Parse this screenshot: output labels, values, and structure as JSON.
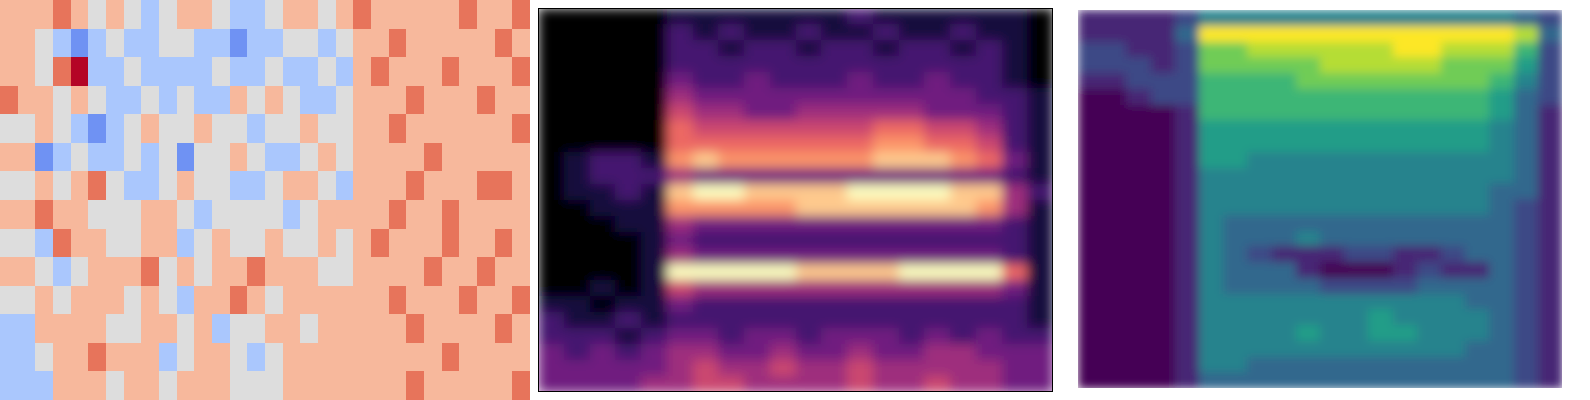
{
  "chart_data": [
    {
      "type": "heatmap",
      "color": "coolwarm",
      "tick_labels": false,
      "color_range": [
        -3,
        3
      ],
      "cells": [
        [
          1,
          1,
          1,
          2,
          1,
          0,
          1,
          0,
          -1,
          0,
          1,
          1,
          0,
          -1,
          -1,
          0,
          1,
          1,
          0,
          1,
          2,
          1,
          1,
          1,
          1,
          1,
          2,
          1,
          1,
          2
        ],
        [
          1,
          1,
          0,
          -1,
          -2,
          -1,
          0,
          -1,
          -1,
          0,
          0,
          -1,
          -1,
          -2,
          -1,
          -1,
          0,
          0,
          -1,
          0,
          1,
          1,
          2,
          1,
          1,
          1,
          1,
          1,
          2,
          1
        ],
        [
          1,
          1,
          0,
          2,
          3,
          -1,
          -1,
          0,
          -1,
          -1,
          -1,
          -1,
          0,
          -1,
          -1,
          0,
          -1,
          -1,
          0,
          -1,
          1,
          2,
          1,
          1,
          1,
          2,
          1,
          1,
          1,
          2
        ],
        [
          2,
          1,
          1,
          0,
          1,
          0,
          -1,
          -1,
          0,
          -1,
          0,
          -1,
          -1,
          1,
          0,
          1,
          0,
          -1,
          -1,
          0,
          1,
          1,
          1,
          2,
          1,
          1,
          1,
          2,
          1,
          1
        ],
        [
          0,
          0,
          1,
          0,
          -1,
          -2,
          -1,
          0,
          1,
          0,
          0,
          1,
          0,
          0,
          -1,
          0,
          0,
          1,
          0,
          0,
          1,
          1,
          2,
          1,
          1,
          1,
          1,
          1,
          1,
          2
        ],
        [
          1,
          1,
          -2,
          -1,
          0,
          -1,
          -1,
          0,
          -1,
          0,
          -2,
          0,
          0,
          1,
          0,
          -1,
          -1,
          0,
          1,
          0,
          1,
          1,
          1,
          1,
          2,
          1,
          1,
          1,
          1,
          1
        ],
        [
          0,
          0,
          1,
          0,
          1,
          2,
          0,
          -1,
          -1,
          0,
          1,
          0,
          0,
          -1,
          -1,
          0,
          1,
          1,
          0,
          -1,
          1,
          1,
          1,
          2,
          1,
          1,
          1,
          2,
          2,
          1
        ],
        [
          1,
          1,
          2,
          1,
          1,
          0,
          0,
          0,
          1,
          1,
          0,
          -1,
          0,
          0,
          0,
          0,
          -1,
          0,
          1,
          1,
          1,
          1,
          2,
          1,
          1,
          2,
          1,
          1,
          1,
          1
        ],
        [
          0,
          0,
          -1,
          2,
          1,
          1,
          0,
          0,
          1,
          1,
          -1,
          0,
          1,
          0,
          0,
          1,
          0,
          0,
          1,
          0,
          1,
          2,
          1,
          1,
          1,
          2,
          1,
          1,
          2,
          1
        ],
        [
          1,
          1,
          0,
          -1,
          0,
          1,
          1,
          1,
          2,
          0,
          1,
          0,
          1,
          1,
          2,
          1,
          1,
          1,
          0,
          0,
          1,
          1,
          1,
          1,
          2,
          1,
          1,
          2,
          1,
          1
        ],
        [
          0,
          0,
          1,
          0,
          1,
          1,
          1,
          0,
          1,
          0,
          -1,
          1,
          1,
          2,
          1,
          0,
          1,
          1,
          1,
          1,
          1,
          1,
          2,
          1,
          1,
          1,
          2,
          1,
          1,
          2
        ],
        [
          -1,
          -1,
          1,
          1,
          1,
          1,
          0,
          0,
          1,
          1,
          0,
          1,
          -1,
          0,
          0,
          1,
          1,
          0,
          1,
          1,
          1,
          1,
          1,
          2,
          1,
          1,
          1,
          1,
          2,
          1
        ],
        [
          -1,
          -1,
          0,
          1,
          1,
          2,
          1,
          1,
          1,
          -1,
          0,
          1,
          1,
          0,
          -1,
          0,
          1,
          1,
          1,
          1,
          1,
          1,
          1,
          1,
          1,
          2,
          1,
          1,
          1,
          1
        ],
        [
          -1,
          -1,
          -1,
          1,
          1,
          1,
          0,
          1,
          1,
          0,
          1,
          1,
          1,
          0,
          0,
          0,
          1,
          1,
          1,
          1,
          1,
          1,
          1,
          2,
          1,
          1,
          1,
          1,
          1,
          2
        ]
      ]
    },
    {
      "type": "heatmap",
      "color": "magma",
      "tick_labels": false,
      "color_range": [
        0,
        9
      ],
      "cells": [
        [
          0,
          0,
          0,
          0,
          0,
          1,
          1,
          1,
          1,
          1,
          1,
          1,
          2,
          1,
          1,
          1,
          1,
          1,
          1,
          0
        ],
        [
          0,
          0,
          0,
          0,
          0,
          2,
          1,
          2,
          1,
          1,
          2,
          1,
          1,
          2,
          1,
          1,
          2,
          1,
          1,
          0
        ],
        [
          0,
          0,
          0,
          0,
          0,
          2,
          2,
          1,
          2,
          2,
          1,
          2,
          2,
          1,
          2,
          2,
          1,
          2,
          1,
          0
        ],
        [
          0,
          0,
          0,
          0,
          0,
          2,
          2,
          2,
          2,
          2,
          2,
          2,
          2,
          2,
          2,
          2,
          2,
          2,
          1,
          0
        ],
        [
          0,
          0,
          0,
          0,
          0,
          3,
          2,
          2,
          3,
          2,
          2,
          2,
          3,
          2,
          2,
          3,
          2,
          2,
          1,
          0
        ],
        [
          0,
          0,
          0,
          0,
          0,
          4,
          3,
          3,
          3,
          3,
          3,
          3,
          3,
          3,
          3,
          3,
          3,
          2,
          2,
          1
        ],
        [
          0,
          0,
          0,
          0,
          0,
          5,
          4,
          4,
          3,
          3,
          4,
          4,
          4,
          4,
          4,
          3,
          3,
          3,
          2,
          1
        ],
        [
          0,
          0,
          0,
          0,
          0,
          6,
          5,
          5,
          5,
          5,
          5,
          5,
          5,
          6,
          6,
          5,
          5,
          4,
          2,
          1
        ],
        [
          0,
          0,
          0,
          0,
          0,
          6,
          6,
          6,
          6,
          6,
          6,
          6,
          6,
          7,
          7,
          6,
          6,
          5,
          2,
          1
        ],
        [
          0,
          1,
          2,
          2,
          1,
          7,
          8,
          7,
          7,
          7,
          7,
          7,
          7,
          8,
          8,
          8,
          7,
          6,
          3,
          1
        ],
        [
          0,
          1,
          2,
          2,
          2,
          4,
          3,
          3,
          3,
          3,
          3,
          3,
          3,
          3,
          3,
          3,
          3,
          3,
          2,
          1
        ],
        [
          0,
          1,
          1,
          2,
          1,
          8,
          9,
          9,
          8,
          8,
          8,
          8,
          9,
          9,
          9,
          9,
          8,
          8,
          4,
          2
        ],
        [
          0,
          0,
          1,
          1,
          1,
          7,
          7,
          7,
          7,
          7,
          8,
          8,
          8,
          8,
          8,
          8,
          8,
          7,
          4,
          1
        ],
        [
          0,
          0,
          0,
          1,
          1,
          4,
          3,
          3,
          3,
          3,
          3,
          3,
          3,
          3,
          3,
          3,
          3,
          3,
          2,
          1
        ],
        [
          0,
          0,
          0,
          0,
          1,
          3,
          2,
          2,
          2,
          2,
          2,
          2,
          2,
          2,
          2,
          2,
          2,
          2,
          2,
          1
        ],
        [
          0,
          0,
          0,
          0,
          1,
          4,
          3,
          3,
          3,
          3,
          3,
          3,
          3,
          3,
          3,
          3,
          3,
          3,
          2,
          1
        ],
        [
          0,
          0,
          0,
          0,
          1,
          9,
          9,
          9,
          9,
          9,
          8,
          8,
          8,
          8,
          9,
          9,
          9,
          9,
          6,
          1
        ],
        [
          0,
          0,
          1,
          0,
          1,
          5,
          4,
          4,
          4,
          4,
          4,
          4,
          4,
          4,
          4,
          4,
          4,
          4,
          3,
          1
        ],
        [
          1,
          1,
          0,
          1,
          1,
          3,
          2,
          2,
          2,
          2,
          2,
          2,
          2,
          2,
          2,
          2,
          2,
          2,
          2,
          1
        ],
        [
          2,
          1,
          1,
          2,
          1,
          2,
          2,
          2,
          2,
          2,
          2,
          2,
          2,
          2,
          2,
          2,
          2,
          2,
          2,
          1
        ],
        [
          2,
          2,
          2,
          1,
          2,
          3,
          3,
          2,
          3,
          3,
          2,
          3,
          3,
          3,
          2,
          3,
          2,
          3,
          2,
          2
        ],
        [
          3,
          2,
          3,
          2,
          3,
          4,
          4,
          3,
          3,
          4,
          3,
          3,
          4,
          3,
          3,
          4,
          4,
          3,
          3,
          3
        ],
        [
          3,
          3,
          3,
          3,
          3,
          4,
          5,
          4,
          4,
          5,
          4,
          4,
          5,
          4,
          4,
          4,
          4,
          4,
          3,
          3
        ],
        [
          3,
          3,
          3,
          3,
          4,
          4,
          5,
          5,
          4,
          4,
          4,
          4,
          5,
          4,
          4,
          5,
          4,
          4,
          3,
          3
        ]
      ]
    },
    {
      "type": "heatmap",
      "color": "viridis",
      "tick_labels": false,
      "color_range": [
        0,
        9
      ],
      "cells": [
        [
          1,
          1,
          1,
          1,
          2,
          4,
          4,
          4,
          4,
          4,
          4,
          4,
          4,
          4,
          4,
          4,
          4,
          4,
          3,
          2
        ],
        [
          1,
          1,
          1,
          1,
          3,
          9,
          9,
          9,
          9,
          9,
          9,
          9,
          9,
          9,
          9,
          9,
          9,
          9,
          8,
          3
        ],
        [
          2,
          2,
          1,
          1,
          2,
          7,
          7,
          8,
          8,
          8,
          8,
          8,
          8,
          9,
          9,
          8,
          8,
          8,
          6,
          2
        ],
        [
          2,
          2,
          2,
          1,
          2,
          7,
          7,
          7,
          7,
          7,
          8,
          8,
          8,
          8,
          8,
          7,
          7,
          7,
          5,
          2
        ],
        [
          1,
          1,
          2,
          2,
          2,
          6,
          6,
          6,
          6,
          7,
          7,
          7,
          7,
          7,
          7,
          7,
          7,
          6,
          4,
          2
        ],
        [
          0,
          0,
          1,
          2,
          2,
          6,
          6,
          6,
          6,
          6,
          6,
          6,
          6,
          6,
          6,
          6,
          6,
          5,
          3,
          2
        ],
        [
          0,
          0,
          0,
          0,
          1,
          6,
          6,
          6,
          6,
          6,
          6,
          6,
          6,
          6,
          6,
          6,
          6,
          5,
          3,
          1
        ],
        [
          0,
          0,
          0,
          0,
          1,
          5,
          5,
          5,
          5,
          5,
          5,
          5,
          5,
          5,
          5,
          5,
          5,
          4,
          3,
          1
        ],
        [
          0,
          0,
          0,
          0,
          1,
          5,
          5,
          5,
          5,
          5,
          5,
          5,
          5,
          5,
          5,
          5,
          5,
          4,
          3,
          1
        ],
        [
          0,
          0,
          0,
          0,
          1,
          5,
          5,
          4,
          4,
          4,
          4,
          4,
          4,
          4,
          4,
          4,
          4,
          4,
          3,
          1
        ],
        [
          0,
          0,
          0,
          0,
          1,
          4,
          4,
          4,
          4,
          4,
          4,
          4,
          4,
          4,
          4,
          4,
          4,
          4,
          3,
          1
        ],
        [
          0,
          0,
          0,
          0,
          1,
          4,
          4,
          4,
          4,
          4,
          4,
          4,
          4,
          4,
          4,
          4,
          4,
          3,
          3,
          1
        ],
        [
          0,
          0,
          0,
          0,
          1,
          4,
          4,
          4,
          4,
          4,
          4,
          4,
          4,
          4,
          4,
          4,
          4,
          3,
          2,
          1
        ],
        [
          0,
          0,
          0,
          0,
          1,
          4,
          3,
          3,
          3,
          3,
          3,
          3,
          3,
          3,
          3,
          3,
          3,
          3,
          2,
          1
        ],
        [
          0,
          0,
          0,
          0,
          1,
          4,
          3,
          3,
          3,
          4,
          3,
          3,
          3,
          3,
          3,
          3,
          3,
          3,
          2,
          1
        ],
        [
          0,
          0,
          0,
          0,
          1,
          4,
          3,
          2,
          1,
          1,
          1,
          2,
          2,
          1,
          1,
          2,
          3,
          3,
          2,
          1
        ],
        [
          0,
          0,
          0,
          0,
          1,
          4,
          3,
          3,
          3,
          1,
          0,
          0,
          0,
          1,
          2,
          1,
          1,
          3,
          2,
          1
        ],
        [
          0,
          0,
          0,
          0,
          1,
          4,
          3,
          3,
          3,
          3,
          2,
          2,
          2,
          2,
          3,
          3,
          3,
          3,
          2,
          1
        ],
        [
          0,
          0,
          0,
          0,
          1,
          4,
          4,
          4,
          4,
          4,
          4,
          4,
          4,
          4,
          4,
          4,
          3,
          3,
          2,
          1
        ],
        [
          0,
          0,
          0,
          0,
          1,
          4,
          4,
          4,
          4,
          4,
          4,
          4,
          5,
          4,
          4,
          4,
          4,
          3,
          2,
          1
        ],
        [
          0,
          0,
          0,
          0,
          1,
          4,
          4,
          4,
          4,
          5,
          4,
          4,
          5,
          5,
          4,
          4,
          4,
          3,
          2,
          1
        ],
        [
          0,
          0,
          0,
          0,
          1,
          4,
          4,
          4,
          4,
          4,
          4,
          4,
          4,
          4,
          4,
          4,
          3,
          3,
          2,
          1
        ],
        [
          0,
          0,
          0,
          0,
          1,
          4,
          4,
          3,
          3,
          3,
          3,
          3,
          3,
          3,
          3,
          3,
          3,
          3,
          2,
          1
        ],
        [
          0,
          0,
          0,
          0,
          1,
          3,
          3,
          3,
          3,
          3,
          3,
          3,
          3,
          3,
          3,
          3,
          3,
          3,
          2,
          1
        ]
      ]
    }
  ]
}
